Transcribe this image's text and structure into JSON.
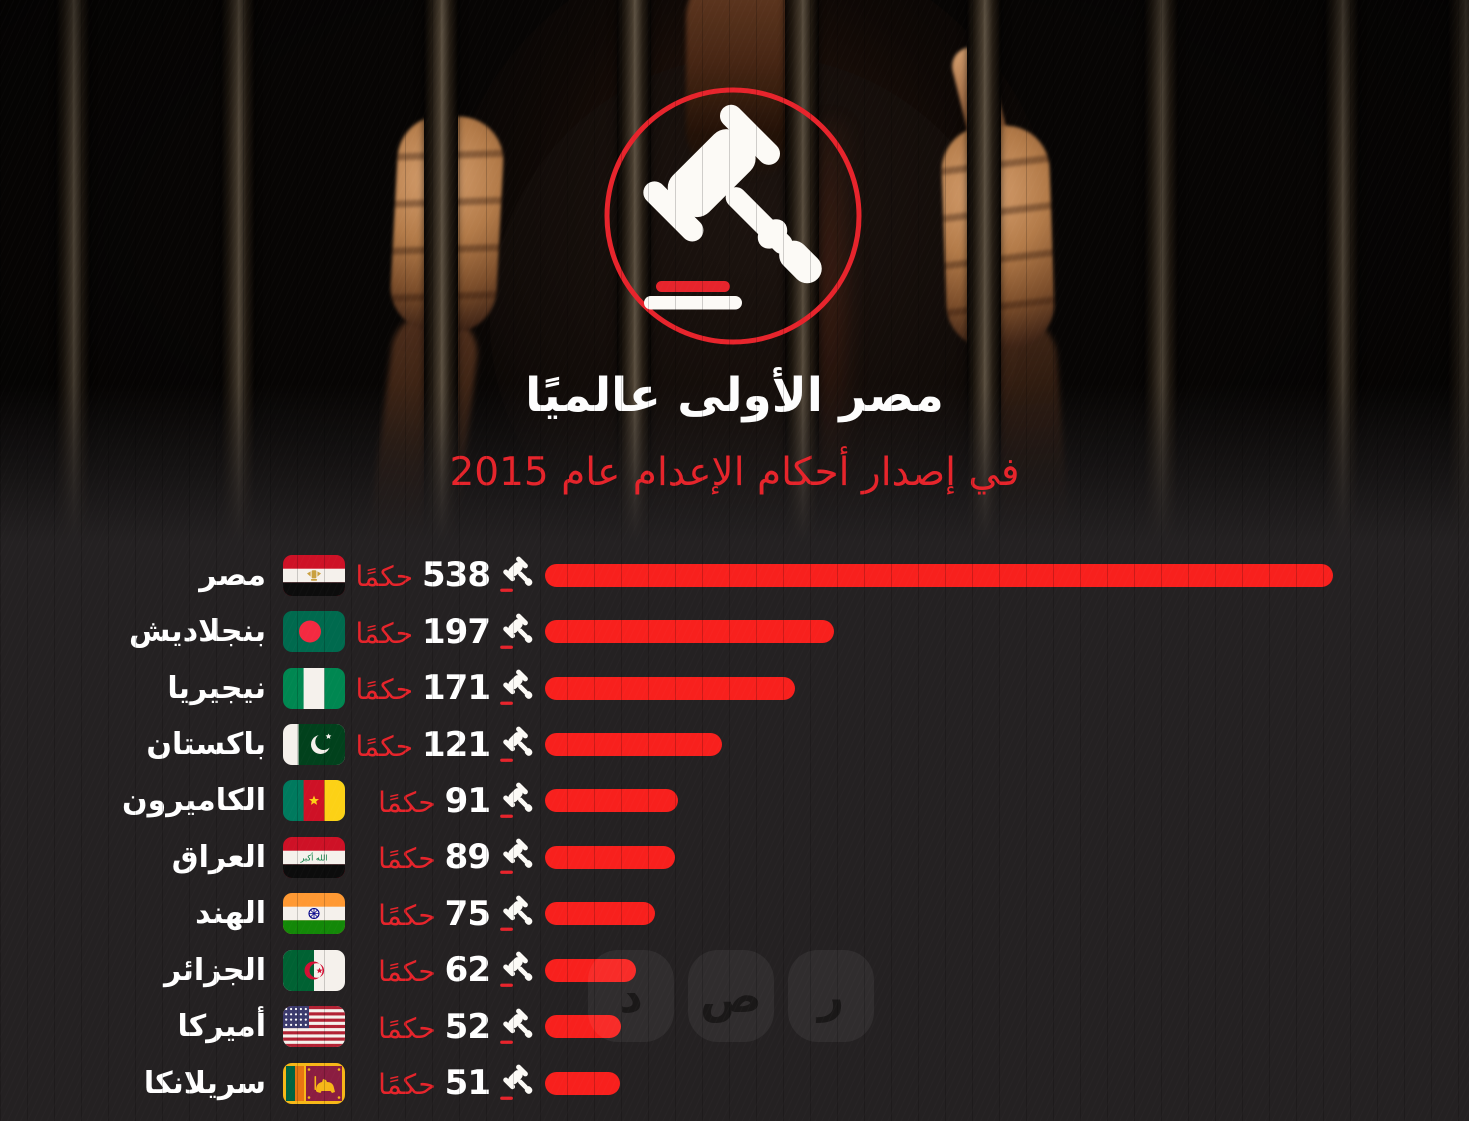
{
  "title": "مصر الأولى عالميًا",
  "subtitle": "في إصدار أحكام الإعدام عام 2015",
  "unit_word": "حكمًا",
  "watermark": {
    "letters": [
      "د",
      "ص",
      "ر"
    ]
  },
  "colors": {
    "bar_red": "#f8201d",
    "accent_red": "#e7242c",
    "text_white": "#ffffff",
    "background": "#242122"
  },
  "countries": [
    {
      "name": "مصر",
      "value": 538,
      "flag": "egypt"
    },
    {
      "name": "بنجلاديش",
      "value": 197,
      "flag": "bangladesh"
    },
    {
      "name": "نيجيريا",
      "value": 171,
      "flag": "nigeria"
    },
    {
      "name": "باكستان",
      "value": 121,
      "flag": "pakistan"
    },
    {
      "name": "الكاميرون",
      "value": 91,
      "flag": "cameroon"
    },
    {
      "name": "العراق",
      "value": 89,
      "flag": "iraq"
    },
    {
      "name": "الهند",
      "value": 75,
      "flag": "india"
    },
    {
      "name": "الجزائر",
      "value": 62,
      "flag": "algeria"
    },
    {
      "name": "أميركا",
      "value": 52,
      "flag": "usa"
    },
    {
      "name": "سريلانكا",
      "value": 51,
      "flag": "srilanka"
    }
  ],
  "chart_data": {
    "type": "bar",
    "orientation": "horizontal",
    "title": "مصر الأولى عالميًا",
    "subtitle": "في إصدار أحكام الإعدام عام 2015",
    "categories": [
      "مصر",
      "بنجلاديش",
      "نيجيريا",
      "باكستان",
      "الكاميرون",
      "العراق",
      "الهند",
      "الجزائر",
      "أميركا",
      "سريلانكا"
    ],
    "values": [
      538,
      197,
      171,
      121,
      91,
      89,
      75,
      62,
      52,
      51
    ],
    "unit": "حكمًا",
    "xlim": [
      0,
      538
    ],
    "bar_color": "#f8201d",
    "legend": false,
    "grid": false
  }
}
